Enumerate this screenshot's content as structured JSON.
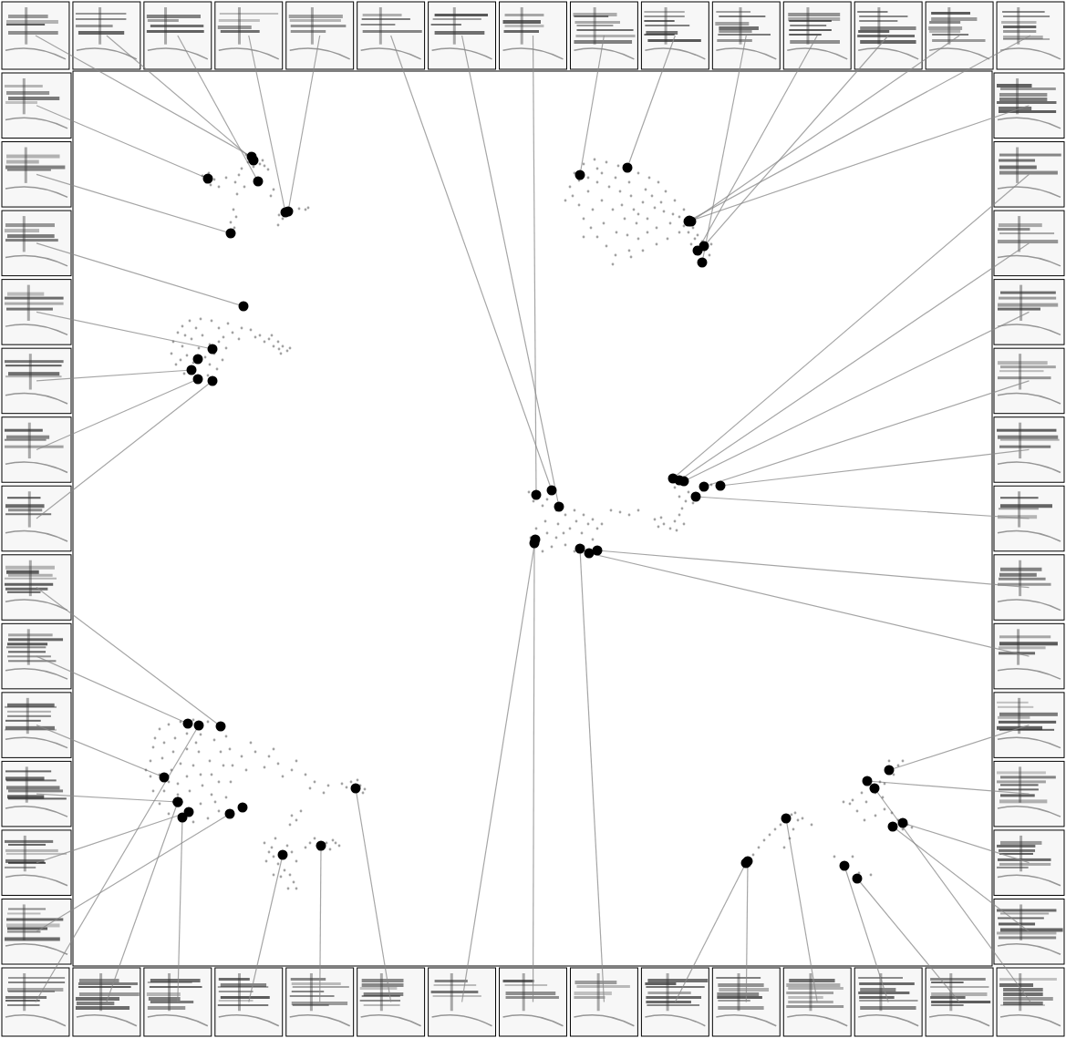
{
  "chart_data": {
    "type": "scatter",
    "xlim": [
      80,
      1088
    ],
    "ylim": [
      1060,
      78
    ],
    "tick_labels": false,
    "series": [
      {
        "color": "#555555",
        "marker": "dot",
        "x": [
          222,
          226,
          231,
          229,
          235,
          270,
          274,
          280,
          285,
          278,
          290,
          294,
          288,
          272,
          265,
          262,
          258,
          268,
          260,
          256,
          259,
          253,
          257,
          306,
          312,
          320,
          328,
          335,
          338,
          310,
          305,
          300,
          297,
          248,
          240,
          190,
          195,
          200,
          208,
          220,
          232,
          240,
          245,
          248,
          244,
          238,
          228,
          215,
          202,
          193,
          188,
          200,
          210,
          222,
          230,
          225,
          212,
          205,
          218,
          235,
          198,
          215,
          230,
          203,
          240,
          255,
          265,
          275,
          285,
          295,
          305,
          310,
          315,
          300,
          308,
          298,
          290,
          280,
          250,
          262,
          318,
          306,
          630,
          625,
          628,
          635,
          640,
          648,
          655,
          665,
          675,
          672,
          690,
          700,
          710,
          720,
          735,
          745,
          750,
          740,
          730,
          722,
          712,
          700,
          690,
          678,
          665,
          652,
          640,
          645,
          655,
          668,
          680,
          692,
          705,
          718,
          728,
          738,
          660,
          672,
          685,
          698,
          710,
          650,
          662,
          676,
          688,
          700,
          715,
          725,
          690,
          675,
          660,
          645,
          635,
          682,
          695,
          708,
          655,
          640,
          620,
          760,
          765,
          770,
          775,
          778,
          768,
          762,
          755,
          750,
          780,
          773,
          758,
          745,
          732,
          720,
          705,
          692,
          580,
          585,
          590,
          595,
          600,
          610,
          620,
          630,
          640,
          650,
          655,
          650,
          640,
          630,
          620,
          610,
          600,
          590,
          582,
          588,
          598,
          612,
          625,
          638,
          645,
          632,
          618,
          605,
          595,
          585,
          660,
          670,
          680,
          690,
          700,
          718,
          722,
          728,
          735,
          740,
          745,
          748,
          752,
          745,
          740,
          735,
          755,
          760,
          750,
          742,
          725,
          770,
          780,
          170,
          175,
          185,
          198,
          212,
          228,
          240,
          248,
          252,
          255,
          253,
          248,
          240,
          228,
          212,
          198,
          185,
          175,
          168,
          165,
          165,
          168,
          180,
          192,
          205,
          220,
          235,
          242,
          245,
          240,
          232,
          220,
          205,
          190,
          180,
          175,
          178,
          190,
          205,
          218,
          230,
          232,
          222,
          208,
          195,
          188,
          198,
          212,
          220,
          205,
          195,
          215,
          185,
          236,
          160,
          265,
          280,
          295,
          305,
          320,
          335,
          345,
          360,
          375,
          385,
          395,
          400,
          388,
          380,
          392,
          398,
          355,
          340,
          270,
          290,
          310,
          275,
          300,
          325,
          290,
          295,
          300,
          305,
          312,
          318,
          322,
          316,
          308,
          298,
          292,
          320,
          325,
          302,
          315,
          300,
          325,
          340,
          348,
          358,
          365,
          372,
          350,
          362,
          345,
          368,
          335,
          320,
          325,
          318,
          330,
          820,
          826,
          832,
          838,
          844,
          850,
          856,
          862,
          868,
          872,
          875,
          870,
          866,
          860,
          822,
          880,
          890,
          925,
          935,
          945,
          955,
          965,
          975,
          985,
          990,
          960,
          970,
          980,
          950,
          940,
          948,
          960,
          970,
          978,
          985,
          995,
          935,
          928,
          942,
          915,
          955,
          990,
          1000,
          932,
          968,
          975
        ],
        "values": [
          193,
          200,
          203,
          190,
          197,
          170,
          168,
          175,
          180,
          183,
          182,
          186,
          176,
          178,
          185,
          192,
          200,
          205,
          213,
          230,
          238,
          244,
          250,
          236,
          230,
          231,
          229,
          230,
          228,
          240,
          247,
          208,
          215,
          195,
          205,
          375,
          365,
          358,
          352,
          350,
          352,
          360,
          370,
          382,
          395,
          405,
          412,
          415,
          410,
          400,
          388,
          380,
          372,
          368,
          378,
          392,
          398,
          390,
          382,
          388,
          395,
          360,
          400,
          368,
          375,
          365,
          360,
          362,
          368,
          372,
          375,
          380,
          385,
          380,
          388,
          368,
          375,
          370,
          355,
          372,
          382,
          383,
          190,
          205,
          215,
          225,
          240,
          250,
          260,
          270,
          280,
          290,
          275,
          262,
          255,
          250,
          245,
          238,
          230,
          220,
          210,
          200,
          195,
          190,
          185,
          182,
          178,
          175,
          180,
          195,
          200,
          205,
          210,
          215,
          222,
          228,
          232,
          235,
          220,
          230,
          240,
          245,
          240,
          230,
          245,
          255,
          258,
          235,
          215,
          222,
          200,
          195,
          190,
          210,
          198,
          225,
          230,
          208,
          185,
          260,
          220,
          250,
          258,
          265,
          272,
          280,
          272,
          262,
          255,
          248,
          268,
          286,
          268,
          255,
          262,
          268,
          275,
          282,
          540,
          550,
          545,
          555,
          548,
          560,
          565,
          560,
          565,
          570,
          580,
          592,
          600,
          605,
          598,
          590,
          585,
          595,
          590,
          580,
          572,
          575,
          580,
          585,
          575,
          572,
          585,
          600,
          605,
          600,
          575,
          560,
          562,
          565,
          560,
          570,
          578,
          575,
          580,
          572,
          565,
          558,
          550,
          545,
          535,
          528,
          540,
          552,
          575,
          582,
          568,
          538,
          532,
          810,
          800,
          795,
          792,
          790,
          792,
          798,
          808,
          822,
          840,
          858,
          875,
          890,
          898,
          902,
          900,
          893,
          882,
          868,
          852,
          835,
          820,
          815,
          810,
          805,
          806,
          812,
          825,
          840,
          858,
          872,
          882,
          888,
          880,
          868,
          850,
          832,
          825,
          822,
          825,
          835,
          850,
          862,
          868,
          860,
          845,
          838,
          840,
          850,
          852,
          872,
          815,
          858,
          880,
          845,
          830,
          825,
          830,
          838,
          845,
          850,
          858,
          862,
          860,
          858,
          862,
          866,
          868,
          864,
          856,
          870,
          870,
          865,
          845,
          842,
          852,
          815,
          822,
          835,
          925,
          935,
          940,
          948,
          955,
          960,
          968,
          975,
          962,
          930,
          945,
          935,
          945,
          920,
          928,
          960,
          975,
          925,
          928,
          925,
          922,
          928,
          932,
          932,
          920,
          925,
          930,
          895,
          900,
          905,
          890,
          945,
          938,
          930,
          922,
          916,
          910,
          905,
          899,
          894,
          892,
          900,
          910,
          920,
          930,
          950,
          898,
          905,
          880,
          878,
          870,
          865,
          858,
          848,
          840,
          835,
          870,
          860,
          850,
          880,
          890,
          900,
          895,
          888,
          892,
          900,
          905,
          940,
          948,
          958,
          940,
          960,
          910,
          908,
          882,
          875,
          835
        ]
      },
      {
        "color": "#000000",
        "marker": "circle",
        "x": [
          276,
          278,
          283,
          313,
          316,
          605,
          613,
          588,
          636,
          688,
          770,
          765,
          772,
          758,
          756,
          755,
          738,
          745,
          750,
          772,
          790,
          763,
          655,
          646,
          975,
          951,
          990,
          979,
          218,
          195,
          200,
          310,
          352,
          390,
          587,
          586,
          636,
          818,
          820,
          862,
          926,
          940,
          959,
          228,
          253,
          267,
          233,
          210,
          217,
          233,
          242,
          206,
          180,
          195,
          207,
          252,
          217,
          266
        ],
        "values": [
          172,
          176,
          199,
          233,
          232,
          538,
          556,
          543,
          192,
          184,
          288,
          275,
          270,
          243,
          242,
          243,
          525,
          527,
          528,
          534,
          533,
          545,
          604,
          607,
          845,
          857,
          903,
          907,
          796,
          880,
          897,
          938,
          928,
          865,
          592,
          596,
          602,
          947,
          945,
          898,
          950,
          964,
          865,
          196,
          256,
          336,
          383,
          406,
          416,
          418,
          797,
          794,
          853,
          880,
          891,
          893,
          394,
          886
        ]
      }
    ]
  }
}
